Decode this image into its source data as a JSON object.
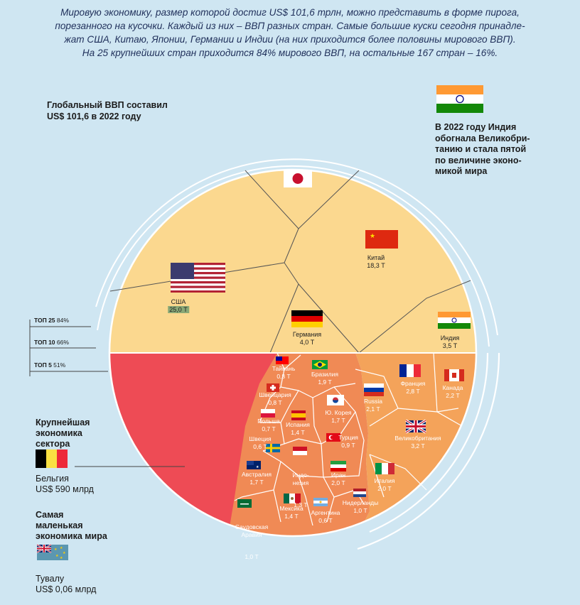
{
  "intro": [
    "Мировую экономику, размер которой достиг US$ 101,6 трлн, можно представить в форме пирога,",
    "порезанного на кусочки. Каждый из них – ВВП разных стран. Самые большие куски сегодня принадле-",
    "жат США, Китаю, Японии, Германии и Индии (на них приходится более половины мирового ВВП).",
    "На 25 крупнейших стран приходится 84% мирового ВВП, на остальные 167 стран – 16%."
  ],
  "gdp_title": [
    "Глобальный ВВП составил",
    "US$ 101,6 в 2022 году"
  ],
  "india_note": [
    "В 2022 году Индия",
    "обогнала Великобри-",
    "танию и стала пятой",
    "по величине эконо-",
    "микой мира"
  ],
  "tops": [
    {
      "name": "ТОП 25",
      "pct": "84%"
    },
    {
      "name": "ТОП 10",
      "pct": "66%"
    },
    {
      "name": "ТОП 5",
      "pct": "51%"
    }
  ],
  "largest": {
    "title": [
      "Крупнейшая",
      "экономика",
      "сектора"
    ],
    "country": "Бельгия",
    "value": "US$ 590 млрд"
  },
  "smallest": {
    "title": [
      "Самая",
      "маленькая",
      "экономика мира"
    ],
    "country": "Тувалу",
    "value": "US$ 0,06 млрд"
  },
  "countries": {
    "usa": {
      "name": "США",
      "value": "25,0 Т"
    },
    "china": {
      "name": "Китай",
      "value": "18,3 Т"
    },
    "germany": {
      "name": "Германия",
      "value": "4,0 Т"
    },
    "india": {
      "name": "Индия",
      "value": "3,5 Т"
    },
    "taiwan": {
      "name": "Тайвань",
      "value": "0,8 Т"
    },
    "switzerland": {
      "name": "Швейцария",
      "value": "0,8 Т"
    },
    "poland": {
      "name": "Польша",
      "value": "0,7 Т"
    },
    "sweden": {
      "name": "Швеция",
      "value": "0,6 Т"
    },
    "brazil": {
      "name": "Бразилия",
      "value": "1,9 Т"
    },
    "korea": {
      "name": "Ю. Корея",
      "value": "1,7 Т"
    },
    "spain": {
      "name": "Испания",
      "value": "1,4 Т"
    },
    "turkey": {
      "name": "Турция",
      "value": "0,9 Т"
    },
    "indonesia": {
      "name": "Индо-\nнезия",
      "value": "1,3 Т"
    },
    "australia": {
      "name": "Австралия",
      "value": "1,7 Т"
    },
    "iran": {
      "name": "Иран",
      "value": "2,0 Т"
    },
    "mexico": {
      "name": "Мексика",
      "value": "1,4 Т"
    },
    "saudi": {
      "name": "Саудовская\nАравия",
      "value": "1,0 Т"
    },
    "argentina": {
      "name": "Аргентина",
      "value": "0,6 Т"
    },
    "netherlands": {
      "name": "Нидерланды",
      "value": "1,0 Т"
    },
    "russia": {
      "name": "Russia",
      "value": "2,1 Т"
    },
    "france": {
      "name": "Франция",
      "value": "2,8 Т"
    },
    "canada": {
      "name": "Канада",
      "value": "2,2 Т"
    },
    "uk": {
      "name": "Великобритания",
      "value": "3,2 Т"
    },
    "italy": {
      "name": "Италия",
      "value": "2,0 Т"
    }
  },
  "colors": {
    "background": "#cfe6f2",
    "top5": "#fbd88f",
    "sector_red": "#ee4b55",
    "top25": "#f08a55",
    "top10_orange": "#f4a35a"
  }
}
